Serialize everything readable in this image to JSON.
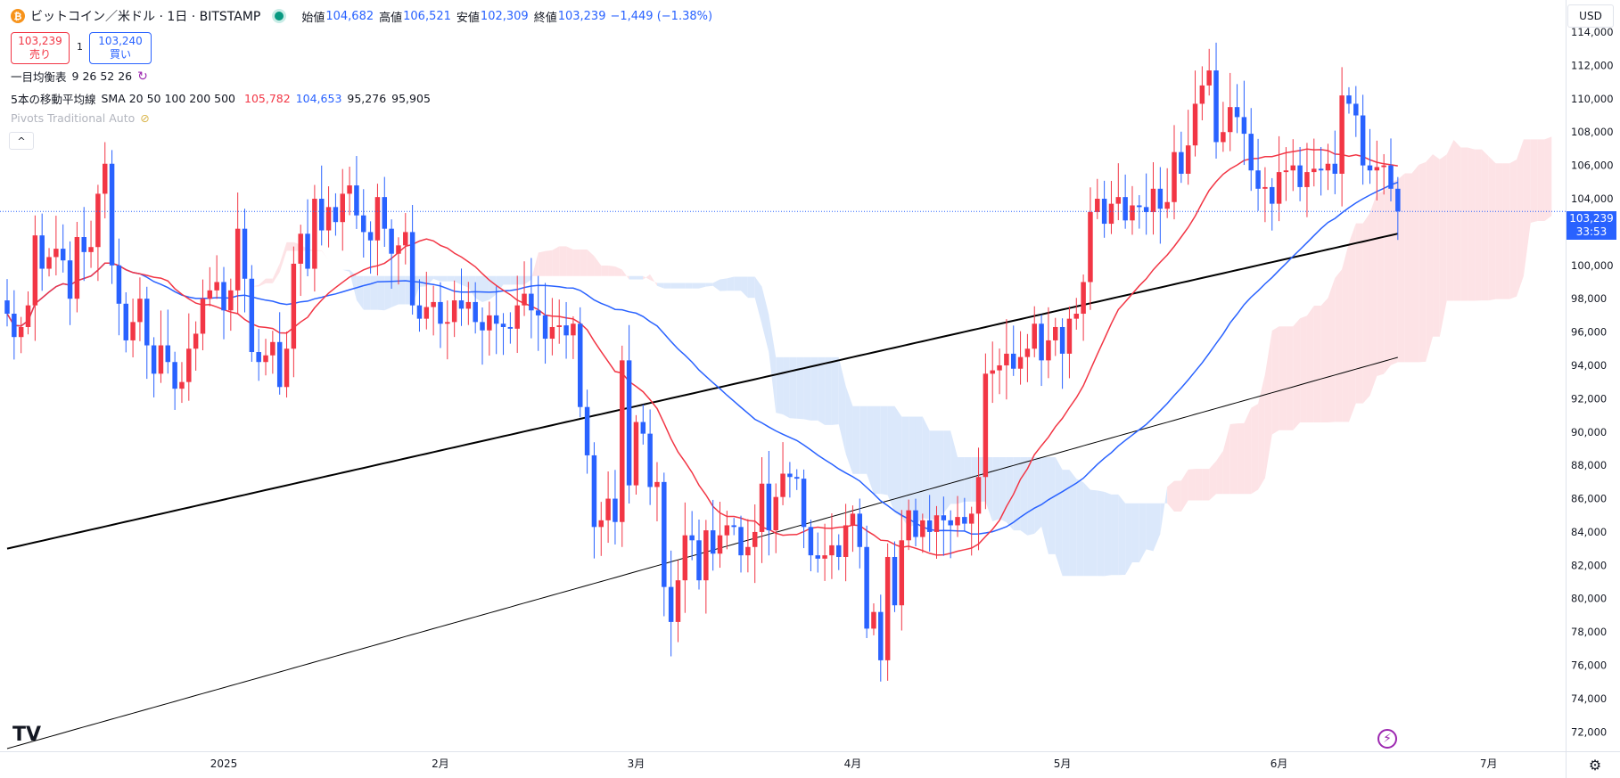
{
  "header": {
    "symbol_icon": "₿",
    "title": "ビットコイン／米ドル · 1日 · BITSTAMP",
    "open_label": "始値",
    "open_value": "104,682",
    "high_label": "高値",
    "high_value": "106,521",
    "low_label": "安値",
    "low_value": "102,309",
    "close_label": "終値",
    "close_value": "103,239",
    "change": "−1,449 (−1.38%)"
  },
  "order": {
    "sell_price": "103,239",
    "sell_label": "売り",
    "spread": "1",
    "buy_price": "103,240",
    "buy_label": "買い"
  },
  "indicators": {
    "ichimoku_name": "一目均衡表",
    "ichimoku_params": "9 26 52 26",
    "sma_name": "5本の移動平均線",
    "sma_params": "SMA 20 50 100 200 500",
    "sma_values": [
      "105,782",
      "104,653",
      "95,276",
      "95,905"
    ],
    "pivots_name": "Pivots Traditional Auto",
    "collapse_icon": "^"
  },
  "price_axis": {
    "currency": "USD",
    "last_price": "103,239",
    "countdown": "33:53"
  },
  "colors": {
    "up": "#f23645",
    "down": "#2962ff",
    "sma20": "#f23645",
    "sma50": "#2962ff",
    "sma200": "#000000",
    "sma500": "#000000",
    "cloud_bull": "#fde3e6",
    "cloud_bear": "#dbe8fb"
  },
  "logo_text": "TV",
  "chart_data": {
    "type": "candlestick",
    "title": "ビットコイン／米ドル · 1日 · BITSTAMP",
    "ylim": [
      71000,
      115500
    ],
    "y_ticks": [
      72000,
      74000,
      76000,
      78000,
      80000,
      82000,
      84000,
      86000,
      88000,
      90000,
      92000,
      94000,
      96000,
      98000,
      100000,
      102000,
      104000,
      106000,
      108000,
      110000,
      112000,
      114000
    ],
    "x_labels": [
      {
        "label": "2025",
        "date": "2025-01-01"
      },
      {
        "label": "2月",
        "date": "2025-02-01"
      },
      {
        "label": "3月",
        "date": "2025-03-01"
      },
      {
        "label": "4月",
        "date": "2025-04-01"
      },
      {
        "label": "5月",
        "date": "2025-05-01"
      },
      {
        "label": "6月",
        "date": "2025-06-01"
      },
      {
        "label": "7月",
        "date": "2025-07-01"
      }
    ],
    "first_date": "2024-12-01",
    "last_date": "2025-06-17",
    "closes": [
      97100,
      95700,
      96300,
      97600,
      101800,
      99800,
      100500,
      101000,
      100300,
      98000,
      101700,
      100800,
      101100,
      104300,
      106100,
      100000,
      97700,
      95500,
      96600,
      98000,
      95200,
      93500,
      95200,
      94200,
      92600,
      93000,
      95000,
      95900,
      98000,
      98500,
      99000,
      97300,
      98500,
      102200,
      99200,
      94800,
      94200,
      94600,
      95400,
      92700,
      95000,
      100100,
      101900,
      99800,
      104000,
      102100,
      103500,
      102600,
      104300,
      104800,
      103000,
      102000,
      101500,
      104100,
      102200,
      100700,
      101200,
      102000,
      97600,
      96800,
      97500,
      97800,
      96500,
      96600,
      97900,
      97400,
      97800,
      96600,
      96100,
      97000,
      96500,
      96300,
      96200,
      97600,
      98300,
      97300,
      97000,
      95600,
      96300,
      96400,
      95800,
      96500,
      91500,
      88600,
      84300,
      84700,
      86000,
      84600,
      94300,
      86800,
      90600,
      89900,
      86700,
      87000,
      80700,
      78600,
      81100,
      83800,
      83500,
      81100,
      84100,
      82700,
      83800,
      84400,
      84300,
      82600,
      83100,
      84000,
      86900,
      84100,
      86100,
      87500,
      87300,
      87200,
      84300,
      82600,
      82400,
      82600,
      83200,
      82500,
      84400,
      85100,
      83100,
      78200,
      79200,
      76300,
      82500,
      79600,
      83500,
      85300,
      83700,
      84700,
      84000,
      85000,
      84700,
      84400,
      84900,
      84500,
      85100,
      87300,
      93500,
      93700,
      94000,
      94700,
      93800,
      94500,
      95000,
      96500,
      94300,
      95500,
      96300,
      94700,
      96800,
      97100,
      99000,
      103200,
      104000,
      102500,
      103700,
      104100,
      102700,
      103600,
      103500,
      103200,
      104600,
      103400,
      103800,
      106800,
      105500,
      107200,
      109700,
      110800,
      111700,
      107400,
      108000,
      109500,
      108900,
      107900,
      105700,
      104600,
      104700,
      103700,
      105600,
      105700,
      106000,
      104700,
      105600,
      105800,
      105700,
      106100,
      105500,
      110200,
      109700,
      109000,
      106000,
      105700,
      105900,
      106000,
      104600,
      103239
    ],
    "ichimoku_span_a_tail": "shaded cloud drawn to the right of last candle",
    "series": [
      {
        "name": "SMA 20",
        "last": 105782
      },
      {
        "name": "SMA 50",
        "last": 104653
      },
      {
        "name": "SMA 200",
        "last": 95276
      },
      {
        "name": "SMA 500",
        "last": 95905
      }
    ],
    "grid": false,
    "legend_position": "top-left"
  }
}
